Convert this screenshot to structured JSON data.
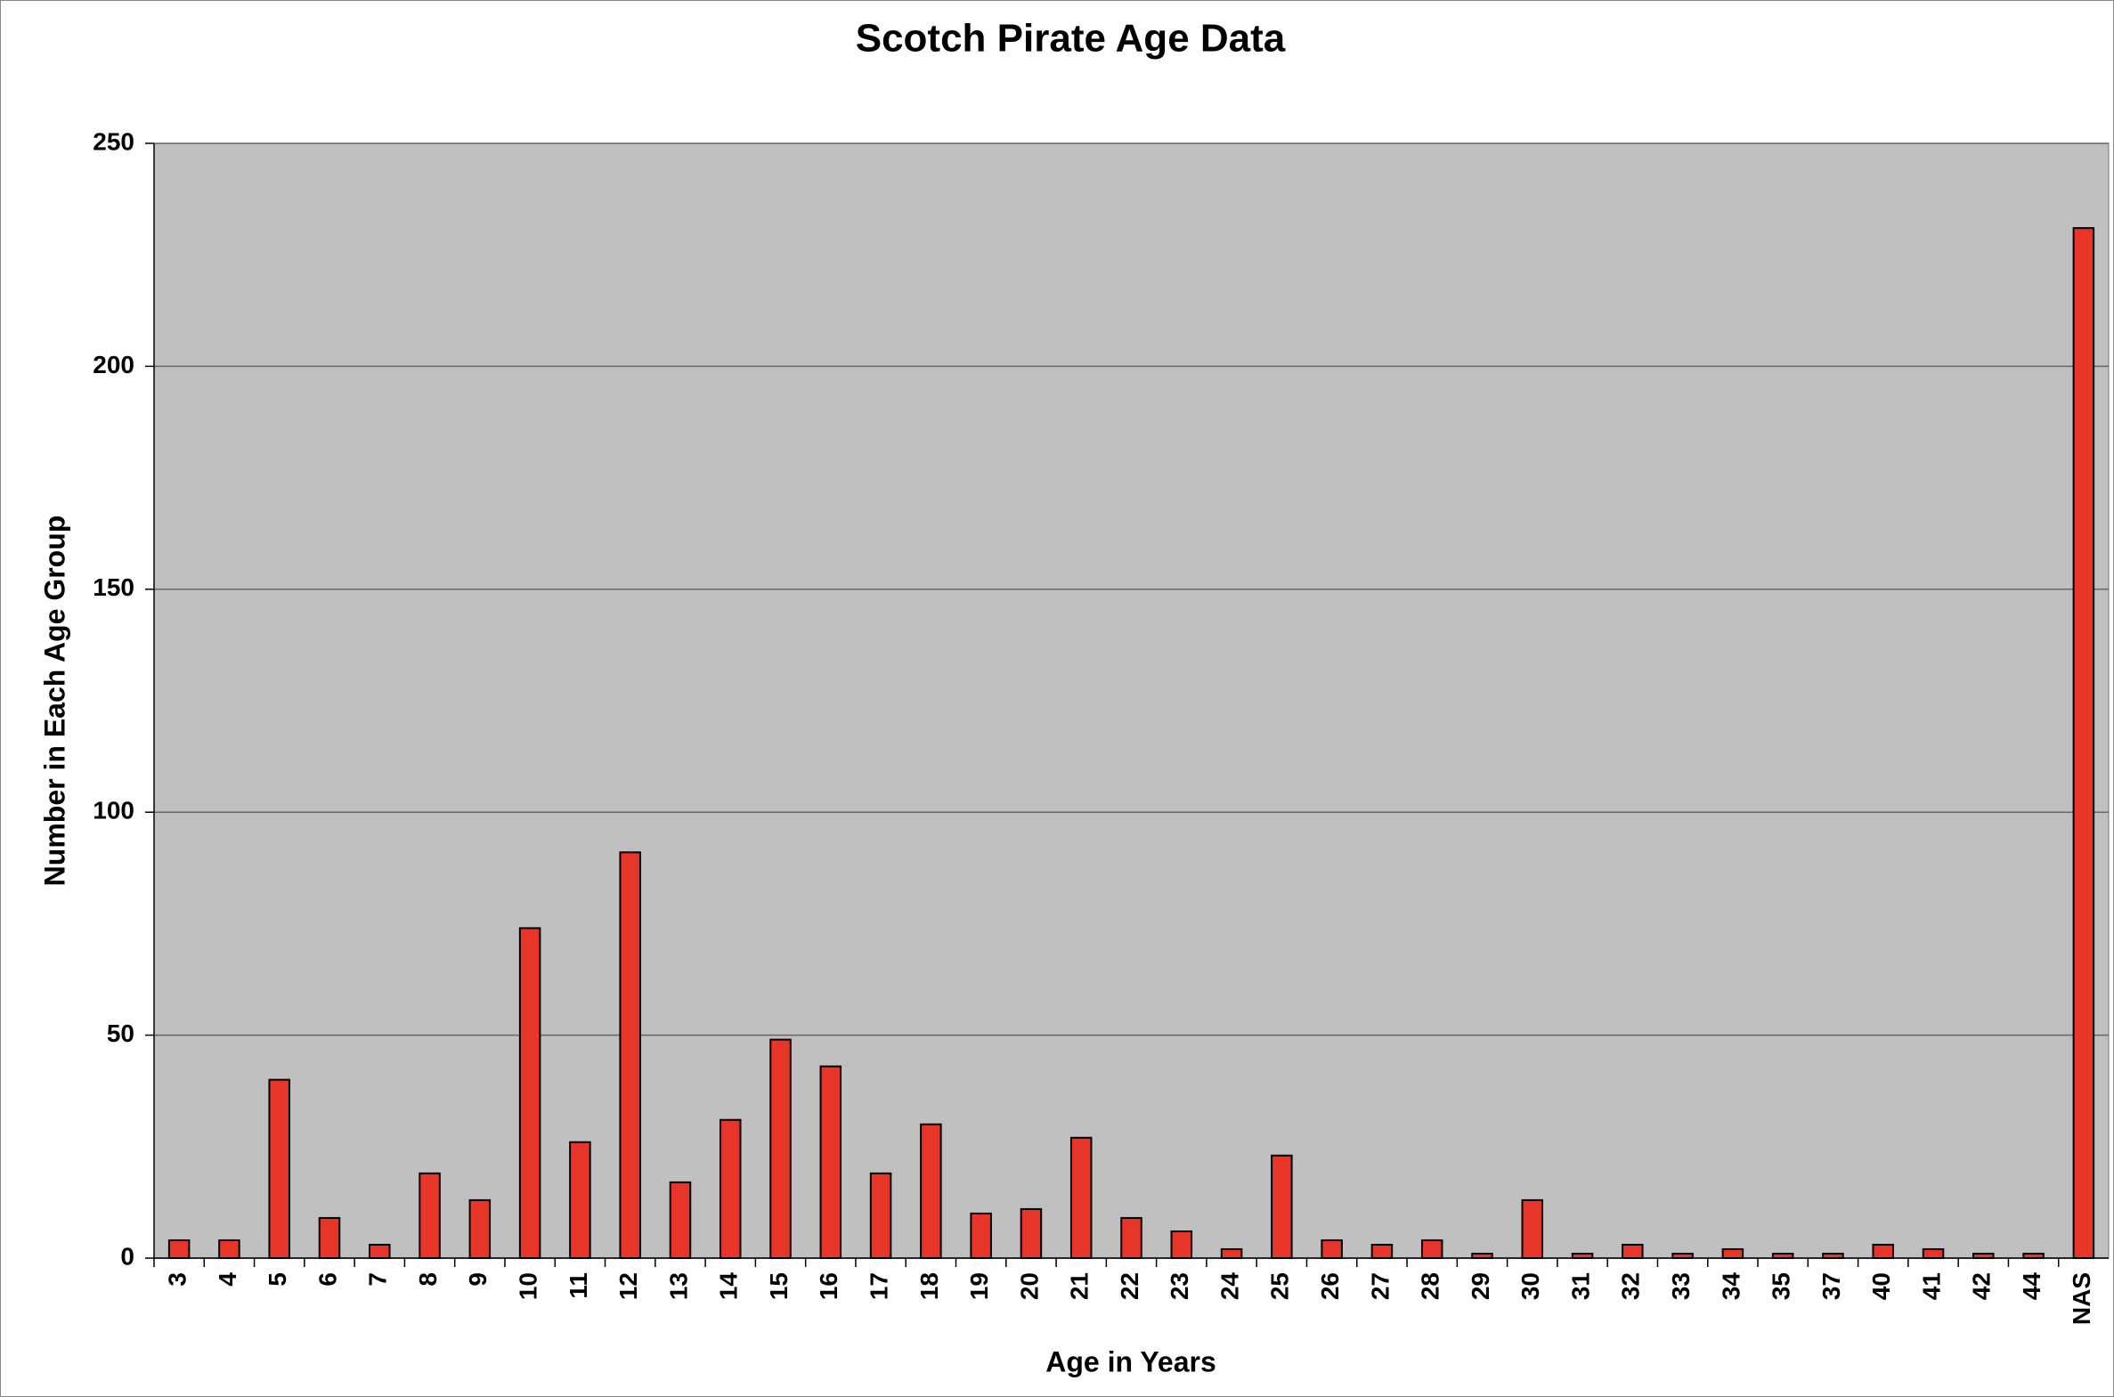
{
  "chart_data": {
    "type": "bar",
    "title": "Scotch Pirate Age Data",
    "x_label": "Age in Years",
    "y_label": "Number in Each Age Group",
    "categories": [
      "3",
      "4",
      "5",
      "6",
      "7",
      "8",
      "9",
      "10",
      "11",
      "12",
      "13",
      "14",
      "15",
      "16",
      "17",
      "18",
      "19",
      "20",
      "21",
      "22",
      "23",
      "24",
      "25",
      "26",
      "27",
      "28",
      "29",
      "30",
      "31",
      "32",
      "33",
      "34",
      "35",
      "37",
      "40",
      "41",
      "42",
      "44",
      "NAS"
    ],
    "values": [
      4,
      4,
      40,
      9,
      3,
      19,
      13,
      74,
      26,
      91,
      17,
      31,
      49,
      43,
      19,
      30,
      10,
      11,
      27,
      9,
      6,
      2,
      23,
      4,
      3,
      4,
      1,
      13,
      1,
      3,
      1,
      2,
      1,
      1,
      3,
      2,
      1,
      1,
      231
    ],
    "color": "#e8352a",
    "ylim": [
      0,
      250
    ],
    "yticks": [
      0,
      50,
      100,
      150,
      200,
      250
    ],
    "grid": true
  }
}
